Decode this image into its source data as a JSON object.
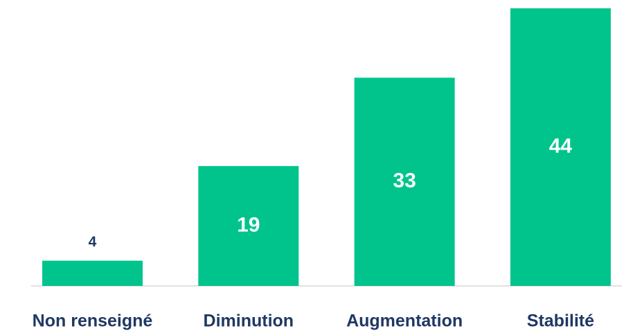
{
  "chart_data": {
    "type": "bar",
    "categories": [
      "Non renseigné",
      "Diminution",
      "Augmentation",
      "Stabilité"
    ],
    "values": [
      4,
      19,
      33,
      44
    ],
    "color": "#00c48c"
  }
}
